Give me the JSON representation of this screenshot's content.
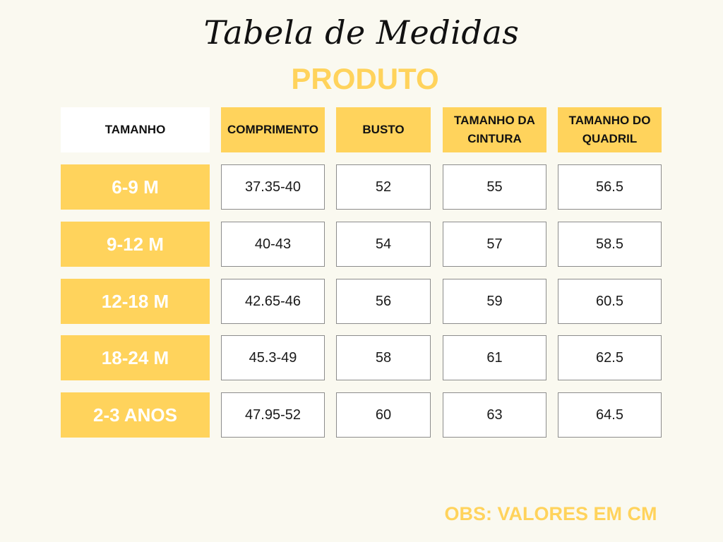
{
  "title": "Tabela de Medidas",
  "subtitle": "PRODUTO",
  "table": {
    "headers": [
      "TAMANHO",
      "COMPRIMENTO",
      "BUSTO",
      "TAMANHO DA CINTURA",
      "TAMANHO DO QUADRIL"
    ],
    "rows": [
      {
        "size": "6-9 M",
        "values": [
          "37.35-40",
          "52",
          "55",
          "56.5"
        ]
      },
      {
        "size": "9-12 M",
        "values": [
          "40-43",
          "54",
          "57",
          "58.5"
        ]
      },
      {
        "size": "12-18 M",
        "values": [
          "42.65-46",
          "56",
          "59",
          "60.5"
        ]
      },
      {
        "size": "18-24 M",
        "values": [
          "45.3-49",
          "58",
          "61",
          "62.5"
        ]
      },
      {
        "size": "2-3 ANOS",
        "values": [
          "47.95-52",
          "60",
          "63",
          "64.5"
        ]
      }
    ]
  },
  "note": "OBS: VALORES EM CM",
  "colors": {
    "accent": "#FFD35C",
    "background": "#FAF9F0"
  }
}
